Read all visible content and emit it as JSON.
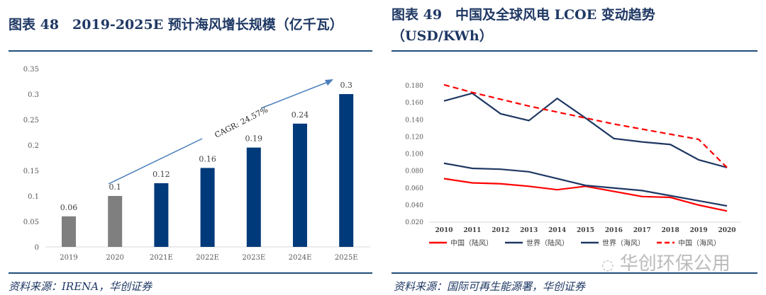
{
  "left": {
    "title": "图表 48　2019-2025E 预计海风增长规模（亿千瓦）",
    "source": "资料来源：IRENA，华创证券"
  },
  "right": {
    "title_line1": "图表 49　中国及全球风电 LCOE 变动趋势",
    "title_line2": "（USD/KWh）",
    "source": "资料来源：国际可再生能源署，华创证券"
  },
  "watermark": "华创环保公用",
  "chart_data": [
    {
      "type": "bar",
      "categories": [
        "2019",
        "2020",
        "2021E",
        "2022E",
        "2023E",
        "2024E",
        "2025E"
      ],
      "values": [
        0.06,
        0.1,
        0.125,
        0.155,
        0.195,
        0.242,
        0.3
      ],
      "data_labels": [
        "0.06",
        "0.1",
        "0.12",
        "0.16",
        "0.19",
        "0.24",
        "0.3"
      ],
      "bar_colors": [
        "#7f7f7f",
        "#7f7f7f",
        "#003a7a",
        "#003a7a",
        "#003a7a",
        "#003a7a",
        "#003a7a"
      ],
      "ylim": [
        0,
        0.35
      ],
      "yticks": [
        "0",
        "0.05",
        "0.1",
        "0.15",
        "0.2",
        "0.25",
        "0.3",
        "0.35"
      ],
      "annotation": "CAGR: 24.57%",
      "grid": false
    },
    {
      "type": "line",
      "x": [
        "2010",
        "2011",
        "2012",
        "2013",
        "2014",
        "2015",
        "2016",
        "2017",
        "2018",
        "2019",
        "2020"
      ],
      "ylim": [
        0.02,
        0.18
      ],
      "yticks": [
        "0.020",
        "0.040",
        "0.060",
        "0.080",
        "0.100",
        "0.120",
        "0.140",
        "0.160",
        "0.180"
      ],
      "legend": "bottom",
      "grid": false,
      "series": [
        {
          "name": "中国（陆风）",
          "color": "#ff0000",
          "dash": false,
          "values": [
            0.071,
            0.066,
            0.065,
            0.062,
            0.058,
            0.062,
            0.056,
            0.05,
            0.049,
            0.04,
            0.033
          ]
        },
        {
          "name": "世界（陆风）",
          "color": "#1f3864",
          "dash": false,
          "values": [
            0.089,
            0.083,
            0.082,
            0.079,
            0.071,
            0.063,
            0.06,
            0.057,
            0.051,
            0.045,
            0.039
          ]
        },
        {
          "name": "世界（海风）",
          "color": "#1f3864",
          "dash": false,
          "values": [
            0.162,
            0.171,
            0.147,
            0.139,
            0.165,
            0.142,
            0.118,
            0.114,
            0.111,
            0.093,
            0.084
          ]
        },
        {
          "name": "中国（海风）",
          "color": "#ff0000",
          "dash": true,
          "values": [
            0.181,
            0.172,
            0.164,
            0.156,
            0.149,
            0.142,
            0.135,
            0.129,
            0.123,
            0.117,
            0.084
          ]
        }
      ]
    }
  ]
}
